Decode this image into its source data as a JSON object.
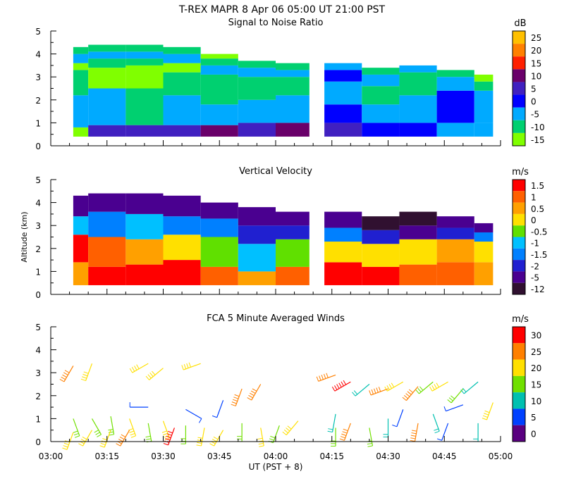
{
  "header": {
    "title": "T-REX   MAPR   8 Apr 06   05:00 UT   21:00   PST"
  },
  "chart_data": [
    {
      "type": "heatmap",
      "title": "Signal to Noise Ratio",
      "ylim": [
        0,
        5
      ],
      "yticks": [
        "0",
        "1",
        "2",
        "3",
        "4",
        "5"
      ],
      "xlim_minutes": [
        0,
        120
      ],
      "data_gap_minutes": [
        69,
        73
      ],
      "colorbar": {
        "unit": "dB",
        "labels": [
          "25",
          "20",
          "15",
          "10",
          "5",
          "0",
          "-5",
          "-10",
          "-15"
        ],
        "colors": [
          "#ffc000",
          "#ff8000",
          "#ff2000",
          "#6a006a",
          "#4020c0",
          "#0000ff",
          "#00aaff",
          "#00d070",
          "#80ff00"
        ]
      },
      "profiles": [
        {
          "t": 0,
          "top": 4.3,
          "bands": [
            [
              0.4,
              0.8,
              8
            ],
            [
              0.8,
              2.2,
              6
            ],
            [
              2.2,
              3.3,
              7
            ],
            [
              3.3,
              3.6,
              8
            ],
            [
              3.6,
              4.0,
              6
            ],
            [
              4.0,
              4.3,
              7
            ]
          ]
        },
        {
          "t": 10,
          "top": 4.4,
          "bands": [
            [
              0.4,
              0.9,
              4
            ],
            [
              0.9,
              2.5,
              6
            ],
            [
              2.5,
              3.4,
              8
            ],
            [
              3.4,
              3.8,
              7
            ],
            [
              3.8,
              4.1,
              6
            ],
            [
              4.1,
              4.4,
              7
            ]
          ]
        },
        {
          "t": 20,
          "top": 4.4,
          "bands": [
            [
              0.4,
              0.9,
              4
            ],
            [
              0.9,
              2.5,
              7
            ],
            [
              2.5,
              3.5,
              8
            ],
            [
              3.5,
              3.8,
              7
            ],
            [
              3.8,
              4.1,
              6
            ],
            [
              4.1,
              4.4,
              7
            ]
          ]
        },
        {
          "t": 30,
          "top": 4.3,
          "bands": [
            [
              0.4,
              0.9,
              4
            ],
            [
              0.9,
              2.2,
              6
            ],
            [
              2.2,
              3.2,
              7
            ],
            [
              3.2,
              3.6,
              8
            ],
            [
              3.6,
              4.0,
              6
            ],
            [
              4.0,
              4.3,
              7
            ]
          ]
        },
        {
          "t": 40,
          "top": 4.0,
          "bands": [
            [
              0.4,
              0.9,
              3
            ],
            [
              0.9,
              1.8,
              6
            ],
            [
              1.8,
              3.1,
              7
            ],
            [
              3.1,
              3.5,
              6
            ],
            [
              3.5,
              3.8,
              7
            ],
            [
              3.8,
              4.0,
              8
            ]
          ]
        },
        {
          "t": 50,
          "top": 3.7,
          "bands": [
            [
              0.4,
              1.0,
              4
            ],
            [
              1.0,
              2.0,
              6
            ],
            [
              2.0,
              3.0,
              7
            ],
            [
              3.0,
              3.4,
              6
            ],
            [
              3.4,
              3.7,
              7
            ]
          ]
        },
        {
          "t": 60,
          "top": 3.6,
          "bands": [
            [
              0.4,
              1.0,
              3
            ],
            [
              1.0,
              2.2,
              6
            ],
            [
              2.2,
              3.0,
              7
            ],
            [
              3.0,
              3.3,
              6
            ],
            [
              3.3,
              3.6,
              7
            ]
          ]
        },
        {
          "t": 73,
          "top": 3.6,
          "bands": [
            [
              0.4,
              1.0,
              4
            ],
            [
              1.0,
              1.8,
              5
            ],
            [
              1.8,
              2.8,
              6
            ],
            [
              2.8,
              3.3,
              5
            ],
            [
              3.3,
              3.6,
              6
            ]
          ]
        },
        {
          "t": 83,
          "top": 3.4,
          "bands": [
            [
              0.4,
              1.0,
              5
            ],
            [
              1.0,
              1.8,
              6
            ],
            [
              1.8,
              2.6,
              7
            ],
            [
              2.6,
              3.1,
              6
            ],
            [
              3.1,
              3.4,
              7
            ]
          ]
        },
        {
          "t": 93,
          "top": 3.5,
          "bands": [
            [
              0.4,
              1.0,
              5
            ],
            [
              1.0,
              2.2,
              6
            ],
            [
              2.2,
              3.2,
              7
            ],
            [
              3.2,
              3.5,
              6
            ]
          ]
        },
        {
          "t": 103,
          "top": 3.3,
          "bands": [
            [
              0.4,
              1.0,
              6
            ],
            [
              1.0,
              2.4,
              5
            ],
            [
              2.4,
              3.0,
              6
            ],
            [
              3.0,
              3.3,
              7
            ]
          ]
        },
        {
          "t": 113,
          "top": 3.1,
          "bands": [
            [
              0.4,
              1.0,
              6
            ],
            [
              1.0,
              2.4,
              6
            ],
            [
              2.4,
              2.8,
              7
            ],
            [
              2.8,
              3.1,
              8
            ]
          ]
        }
      ]
    },
    {
      "type": "heatmap",
      "title": "Vertical Velocity",
      "ylabel": "Altitude (km)",
      "ylim": [
        0,
        5
      ],
      "yticks": [
        "0",
        "1",
        "2",
        "3",
        "4",
        "5"
      ],
      "xlim_minutes": [
        0,
        120
      ],
      "data_gap_minutes": [
        69,
        73
      ],
      "colorbar": {
        "unit": "m/s",
        "labels": [
          "1.5",
          "1",
          "0.5",
          "0",
          "-0.5",
          "-1",
          "-1.5",
          "-2",
          "-5",
          "-12"
        ],
        "colors": [
          "#ff0000",
          "#ff6000",
          "#ffa000",
          "#ffe000",
          "#60e000",
          "#00c0ff",
          "#0080ff",
          "#2020d0",
          "#4a0090",
          "#301030"
        ]
      },
      "profiles": [
        {
          "t": 0,
          "top": 4.3,
          "bands": [
            [
              0.4,
              1.4,
              2
            ],
            [
              1.4,
              2.6,
              0
            ],
            [
              2.6,
              3.4,
              5
            ],
            [
              3.4,
              4.3,
              8
            ]
          ]
        },
        {
          "t": 10,
          "top": 4.4,
          "bands": [
            [
              0.4,
              1.2,
              0
            ],
            [
              1.2,
              2.5,
              1
            ],
            [
              2.5,
              3.6,
              6
            ],
            [
              3.6,
              4.4,
              8
            ]
          ]
        },
        {
          "t": 20,
          "top": 4.4,
          "bands": [
            [
              0.4,
              1.3,
              0
            ],
            [
              1.3,
              2.4,
              2
            ],
            [
              2.4,
              3.5,
              5
            ],
            [
              3.5,
              4.4,
              8
            ]
          ]
        },
        {
          "t": 30,
          "top": 4.3,
          "bands": [
            [
              0.4,
              1.5,
              0
            ],
            [
              1.5,
              2.6,
              3
            ],
            [
              2.6,
              3.4,
              6
            ],
            [
              3.4,
              4.3,
              8
            ]
          ]
        },
        {
          "t": 40,
          "top": 4.0,
          "bands": [
            [
              0.4,
              1.2,
              1
            ],
            [
              1.2,
              2.5,
              4
            ],
            [
              2.5,
              3.3,
              6
            ],
            [
              3.3,
              4.0,
              8
            ]
          ]
        },
        {
          "t": 50,
          "top": 3.8,
          "bands": [
            [
              0.4,
              1.0,
              2
            ],
            [
              1.0,
              2.2,
              5
            ],
            [
              2.2,
              3.0,
              7
            ],
            [
              3.0,
              3.8,
              8
            ]
          ]
        },
        {
          "t": 60,
          "top": 3.6,
          "bands": [
            [
              0.4,
              1.2,
              1
            ],
            [
              1.2,
              2.4,
              4
            ],
            [
              2.4,
              3.0,
              7
            ],
            [
              3.0,
              3.6,
              8
            ]
          ]
        },
        {
          "t": 73,
          "top": 3.6,
          "bands": [
            [
              0.4,
              1.4,
              0
            ],
            [
              1.4,
              2.3,
              3
            ],
            [
              2.3,
              2.9,
              6
            ],
            [
              2.9,
              3.6,
              8
            ]
          ]
        },
        {
          "t": 83,
          "top": 3.4,
          "bands": [
            [
              0.4,
              1.2,
              0
            ],
            [
              1.2,
              2.2,
              3
            ],
            [
              2.2,
              2.8,
              7
            ],
            [
              2.8,
              3.4,
              9
            ]
          ]
        },
        {
          "t": 93,
          "top": 3.6,
          "bands": [
            [
              0.4,
              1.3,
              1
            ],
            [
              1.3,
              2.4,
              3
            ],
            [
              2.4,
              3.0,
              8
            ],
            [
              3.0,
              3.6,
              9
            ]
          ]
        },
        {
          "t": 103,
          "top": 3.4,
          "bands": [
            [
              0.4,
              1.4,
              1
            ],
            [
              1.4,
              2.4,
              2
            ],
            [
              2.4,
              2.9,
              7
            ],
            [
              2.9,
              3.4,
              8
            ]
          ]
        },
        {
          "t": 113,
          "top": 3.1,
          "bands": [
            [
              0.4,
              1.4,
              2
            ],
            [
              1.4,
              2.3,
              3
            ],
            [
              2.3,
              2.7,
              6
            ],
            [
              2.7,
              3.1,
              8
            ]
          ]
        }
      ]
    },
    {
      "type": "scatter",
      "title": "FCA 5 Minute Averaged Winds",
      "xlabel": "UT  (PST + 8)",
      "ylim": [
        0,
        5
      ],
      "yticks": [
        "0",
        "1",
        "2",
        "3",
        "4",
        "5"
      ],
      "xticks": [
        "03:00",
        "03:15",
        "03:30",
        "03:45",
        "04:00",
        "04:15",
        "04:30",
        "04:45",
        "05:00"
      ],
      "xlim_minutes": [
        0,
        120
      ],
      "colorbar": {
        "unit": "m/s",
        "labels": [
          "30",
          "25",
          "20",
          "15",
          "10",
          "5",
          "0"
        ],
        "colors": [
          "#ff0000",
          "#ff8000",
          "#ffe000",
          "#70e000",
          "#00c0b0",
          "#0040ff",
          "#5a0080"
        ]
      },
      "barbs": [
        {
          "t": 6,
          "z": 3.3,
          "dir": 210,
          "speed": 24
        },
        {
          "t": 6,
          "z": 1.0,
          "dir": 160,
          "speed": 15
        },
        {
          "t": 6,
          "z": 0.4,
          "dir": 200,
          "speed": 18
        },
        {
          "t": 11,
          "z": 3.4,
          "dir": 200,
          "speed": 22
        },
        {
          "t": 11,
          "z": 1.0,
          "dir": 150,
          "speed": 16
        },
        {
          "t": 11,
          "z": 0.5,
          "dir": 210,
          "speed": 19
        },
        {
          "t": 16,
          "z": 1.1,
          "dir": 170,
          "speed": 14
        },
        {
          "t": 16,
          "z": 0.5,
          "dir": 200,
          "speed": 20
        },
        {
          "t": 21,
          "z": 1.0,
          "dir": 160,
          "speed": 21
        },
        {
          "t": 21,
          "z": 0.5,
          "dir": 210,
          "speed": 23
        },
        {
          "t": 26,
          "z": 3.4,
          "dir": 240,
          "speed": 20
        },
        {
          "t": 26,
          "z": 1.5,
          "dir": 270,
          "speed": 6
        },
        {
          "t": 26,
          "z": 0.8,
          "dir": 170,
          "speed": 17
        },
        {
          "t": 30,
          "z": 3.2,
          "dir": 230,
          "speed": 22
        },
        {
          "t": 30,
          "z": 0.9,
          "dir": 160,
          "speed": 20
        },
        {
          "t": 33,
          "z": 0.6,
          "dir": 200,
          "speed": 28
        },
        {
          "t": 36,
          "z": 1.4,
          "dir": 120,
          "speed": 7
        },
        {
          "t": 36,
          "z": 0.7,
          "dir": 180,
          "speed": 15
        },
        {
          "t": 40,
          "z": 3.4,
          "dir": 250,
          "speed": 22
        },
        {
          "t": 41,
          "z": 0.6,
          "dir": 190,
          "speed": 18
        },
        {
          "t": 46,
          "z": 1.8,
          "dir": 200,
          "speed": 7
        },
        {
          "t": 46,
          "z": 0.5,
          "dir": 210,
          "speed": 19
        },
        {
          "t": 51,
          "z": 2.3,
          "dir": 200,
          "speed": 24
        },
        {
          "t": 51,
          "z": 0.8,
          "dir": 180,
          "speed": 14
        },
        {
          "t": 56,
          "z": 2.5,
          "dir": 210,
          "speed": 26
        },
        {
          "t": 56,
          "z": 0.6,
          "dir": 170,
          "speed": 20
        },
        {
          "t": 61,
          "z": 0.7,
          "dir": 200,
          "speed": 17
        },
        {
          "t": 66,
          "z": 0.9,
          "dir": 220,
          "speed": 22
        },
        {
          "t": 76,
          "z": 2.9,
          "dir": 250,
          "speed": 23
        },
        {
          "t": 76,
          "z": 1.2,
          "dir": 190,
          "speed": 8
        },
        {
          "t": 76,
          "z": 0.6,
          "dir": 180,
          "speed": 15
        },
        {
          "t": 80,
          "z": 2.6,
          "dir": 240,
          "speed": 28
        },
        {
          "t": 80,
          "z": 0.8,
          "dir": 200,
          "speed": 27
        },
        {
          "t": 85,
          "z": 2.5,
          "dir": 230,
          "speed": 12
        },
        {
          "t": 85,
          "z": 0.6,
          "dir": 170,
          "speed": 14
        },
        {
          "t": 90,
          "z": 2.3,
          "dir": 250,
          "speed": 27
        },
        {
          "t": 90,
          "z": 1.0,
          "dir": 180,
          "speed": 10
        },
        {
          "t": 94,
          "z": 2.6,
          "dir": 240,
          "speed": 20
        },
        {
          "t": 94,
          "z": 1.4,
          "dir": 200,
          "speed": 6
        },
        {
          "t": 98,
          "z": 2.4,
          "dir": 220,
          "speed": 27
        },
        {
          "t": 98,
          "z": 0.8,
          "dir": 190,
          "speed": 26
        },
        {
          "t": 102,
          "z": 2.6,
          "dir": 230,
          "speed": 14
        },
        {
          "t": 102,
          "z": 1.2,
          "dir": 160,
          "speed": 10
        },
        {
          "t": 106,
          "z": 2.6,
          "dir": 240,
          "speed": 21
        },
        {
          "t": 106,
          "z": 0.8,
          "dir": 200,
          "speed": 6
        },
        {
          "t": 110,
          "z": 2.3,
          "dir": 220,
          "speed": 15
        },
        {
          "t": 110,
          "z": 1.6,
          "dir": 250,
          "speed": 6
        },
        {
          "t": 114,
          "z": 2.6,
          "dir": 230,
          "speed": 11
        },
        {
          "t": 114,
          "z": 0.8,
          "dir": 180,
          "speed": 12
        },
        {
          "t": 118,
          "z": 1.7,
          "dir": 200,
          "speed": 18
        }
      ]
    }
  ]
}
